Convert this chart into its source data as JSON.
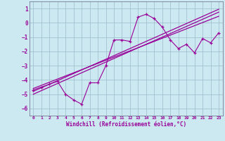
{
  "xlabel": "Windchill (Refroidissement éolien,°C)",
  "bg_color": "#cce8f0",
  "line_color": "#990099",
  "grid_color": "#99bbcc",
  "x_data": [
    0,
    1,
    2,
    3,
    4,
    5,
    6,
    7,
    8,
    9,
    10,
    11,
    12,
    13,
    14,
    15,
    16,
    17,
    18,
    19,
    20,
    21,
    22,
    23
  ],
  "line1_y": [
    -4.8,
    -4.55,
    -4.3,
    -4.05,
    -3.8,
    -3.55,
    -3.3,
    -3.05,
    -2.8,
    -2.55,
    -2.3,
    -2.05,
    -1.8,
    -1.55,
    -1.3,
    -1.05,
    -0.8,
    -0.55,
    -0.3,
    -0.05,
    0.2,
    0.45,
    0.7,
    0.95
  ],
  "line2_y": [
    -4.6,
    -4.38,
    -4.16,
    -3.94,
    -3.72,
    -3.5,
    -3.28,
    -3.06,
    -2.84,
    -2.62,
    -2.4,
    -2.18,
    -1.96,
    -1.74,
    -1.52,
    -1.3,
    -1.08,
    -0.86,
    -0.64,
    -0.42,
    -0.2,
    0.02,
    0.24,
    0.46
  ],
  "line3_y": [
    -5.0,
    -4.75,
    -4.5,
    -4.25,
    -4.0,
    -3.75,
    -3.5,
    -3.25,
    -3.0,
    -2.75,
    -2.5,
    -2.25,
    -2.0,
    -1.75,
    -1.5,
    -1.25,
    -1.0,
    -0.75,
    -0.5,
    -0.25,
    0.0,
    0.25,
    0.5,
    0.75
  ],
  "scatter_y": [
    -4.7,
    -4.5,
    -4.3,
    -4.1,
    -5.0,
    -5.4,
    -5.7,
    -4.2,
    -4.2,
    -3.0,
    -1.2,
    -1.2,
    -1.3,
    0.4,
    0.6,
    0.3,
    -0.3,
    -1.2,
    -1.8,
    -1.5,
    -2.1,
    -1.1,
    -1.4,
    -0.7
  ],
  "ylim": [
    -6.5,
    1.5
  ],
  "xlim": [
    -0.5,
    23.5
  ],
  "yticks": [
    1,
    0,
    -1,
    -2,
    -3,
    -4,
    -5,
    -6
  ],
  "xticks": [
    0,
    1,
    2,
    3,
    4,
    5,
    6,
    7,
    8,
    9,
    10,
    11,
    12,
    13,
    14,
    15,
    16,
    17,
    18,
    19,
    20,
    21,
    22,
    23
  ]
}
